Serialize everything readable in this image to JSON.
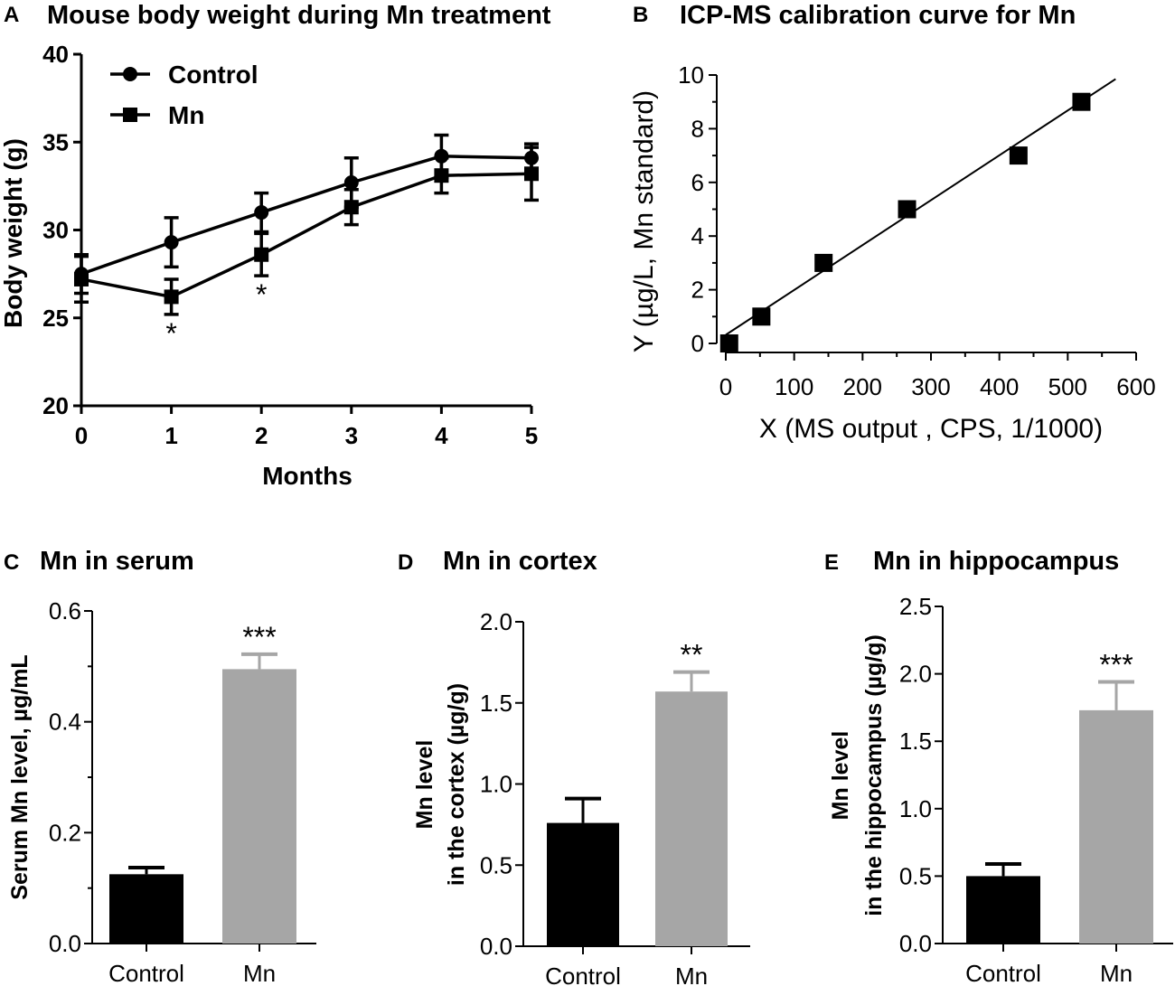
{
  "chart_data": [
    {
      "panel": "A",
      "type": "line",
      "title": "Mouse body weight during Mn treatment",
      "xlabel": "Months",
      "ylabel": "Body weight (g)",
      "x": [
        0,
        1,
        2,
        3,
        4,
        5
      ],
      "xticks": [
        "0",
        "1",
        "2",
        "3",
        "4",
        "5"
      ],
      "ylim": [
        20,
        40
      ],
      "yticks": [
        "20",
        "25",
        "30",
        "35",
        "40"
      ],
      "legend": "top-left",
      "series": [
        {
          "name": "Control",
          "marker": "circle",
          "values": [
            27.5,
            29.3,
            31.0,
            32.7,
            34.2,
            34.1
          ],
          "errors": [
            1.1,
            1.4,
            1.1,
            1.4,
            1.2,
            0.8
          ]
        },
        {
          "name": "Mn",
          "marker": "square",
          "values": [
            27.2,
            26.2,
            28.6,
            31.3,
            33.1,
            33.2
          ],
          "errors": [
            1.3,
            1.0,
            1.2,
            1.0,
            1.0,
            1.5
          ]
        }
      ],
      "annotations": [
        {
          "x": 1,
          "text": "*"
        },
        {
          "x": 2,
          "text": "*"
        }
      ]
    },
    {
      "panel": "B",
      "type": "scatter",
      "title": "ICP-MS calibration curve for Mn",
      "xlabel": "X (MS output , CPS, 1/1000)",
      "ylabel": "Y (µg/L, Mn standard)",
      "xlim": [
        0,
        600
      ],
      "ylim": [
        0,
        10
      ],
      "xticks": [
        "0",
        "100",
        "200",
        "300",
        "400",
        "500",
        "600"
      ],
      "yticks": [
        "0",
        "2",
        "4",
        "6",
        "8",
        "10"
      ],
      "points": [
        {
          "x": 5,
          "y": 0
        },
        {
          "x": 52,
          "y": 1
        },
        {
          "x": 143,
          "y": 3
        },
        {
          "x": 265,
          "y": 5
        },
        {
          "x": 428,
          "y": 7
        },
        {
          "x": 520,
          "y": 9
        }
      ],
      "fit_line": {
        "x": [
          0,
          570
        ],
        "y": [
          0.32,
          9.85
        ]
      }
    },
    {
      "panel": "C",
      "type": "bar",
      "title": "Mn in serum",
      "ylabel": "Serum Mn level, µg/mL",
      "categories": [
        "Control",
        "Mn"
      ],
      "values": [
        0.125,
        0.495
      ],
      "errors": [
        0.012,
        0.027
      ],
      "colors": [
        "#000000",
        "#a6a6a6"
      ],
      "ylim": [
        0,
        0.6
      ],
      "yticks": [
        "0.0",
        "0.2",
        "0.4",
        "0.6"
      ],
      "annotations": [
        "",
        "***"
      ]
    },
    {
      "panel": "D",
      "type": "bar",
      "title": "Mn in cortex",
      "ylabel": [
        "Mn level",
        "in the cortex (µg/g)"
      ],
      "categories": [
        "Control",
        "Mn"
      ],
      "values": [
        0.76,
        1.57
      ],
      "errors": [
        0.15,
        0.12
      ],
      "colors": [
        "#000000",
        "#a6a6a6"
      ],
      "ylim": [
        0,
        2.0
      ],
      "yticks": [
        "0.0",
        "0.5",
        "1.0",
        "1.5",
        "2.0"
      ],
      "annotations": [
        "",
        "**"
      ]
    },
    {
      "panel": "E",
      "type": "bar",
      "title": "Mn in hippocampus",
      "ylabel": [
        "Mn level",
        "in the hippocampus (µg/g)"
      ],
      "categories": [
        "Control",
        "Mn"
      ],
      "values": [
        0.5,
        1.73
      ],
      "errors": [
        0.09,
        0.21
      ],
      "colors": [
        "#000000",
        "#a6a6a6"
      ],
      "ylim": [
        0,
        2.5
      ],
      "yticks": [
        "0.0",
        "0.5",
        "1.0",
        "1.5",
        "2.0",
        "2.5"
      ],
      "annotations": [
        "",
        "***"
      ]
    }
  ]
}
